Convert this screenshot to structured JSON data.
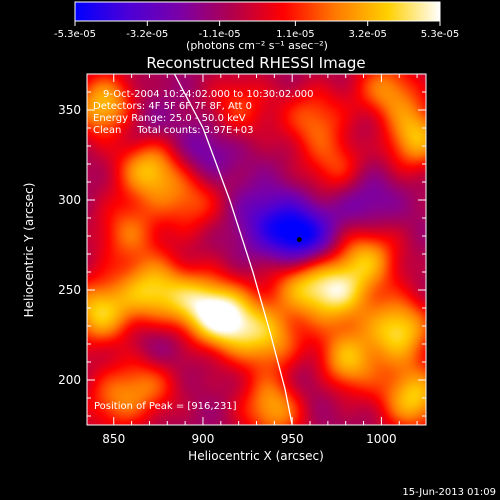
{
  "colorbar": {
    "ticks": [
      "-5.3e-05",
      "-3.2e-05",
      "-1.1e-05",
      "1.1e-05",
      "3.2e-05",
      "5.3e-05"
    ],
    "tick_values": [
      -5.3e-05,
      -3.2e-05,
      -1.1e-05,
      1.1e-05,
      3.2e-05,
      5.3e-05
    ],
    "range": [
      -5.3e-05,
      5.3e-05
    ],
    "unit_label": "(photons cm⁻² s⁻¹ asec⁻²)",
    "stops": [
      "#0000ff",
      "#4b00d8",
      "#7a00a8",
      "#b0004e",
      "#ff0000",
      "#ff7a00",
      "#ffd000",
      "#ffffff"
    ]
  },
  "chart_data": {
    "type": "heatmap",
    "title": "Reconstructed RHESSI Image",
    "xlabel": "Heliocentric X (arcsec)",
    "ylabel": "Heliocentric Y (arcsec)",
    "xlim": [
      835,
      1025
    ],
    "ylim": [
      175,
      370
    ],
    "xticks": [
      850,
      900,
      950,
      1000
    ],
    "yticks": [
      200,
      250,
      300,
      350
    ],
    "xticklabels": [
      "850",
      "900",
      "950",
      "1000"
    ],
    "yticklabels": [
      "200",
      "250",
      "300",
      "350"
    ],
    "info_lines": [
      "9-Oct-2004 10:24:02.000 to 10:30:02.000",
      "Detectors: 4F 5F 6F 7F 8F, Att 0",
      "Energy Range: 25.0 - 50.0 keV",
      "Clean     Total counts: 3.97E+03"
    ],
    "peak_label": "Position of Peak = [916,231]",
    "marker": {
      "x": 954,
      "y": 278
    },
    "limb": [
      [
        884,
        370
      ],
      [
        900,
        340
      ],
      [
        915,
        300
      ],
      [
        928,
        260
      ],
      [
        938,
        225
      ],
      [
        946,
        195
      ],
      [
        950,
        175
      ]
    ],
    "blobs": [
      {
        "x": 845,
        "y": 352,
        "v": 0.9
      },
      {
        "x": 870,
        "y": 318,
        "v": 0.9
      },
      {
        "x": 893,
        "y": 300,
        "v": 0.55
      },
      {
        "x": 858,
        "y": 282,
        "v": 0.55
      },
      {
        "x": 842,
        "y": 238,
        "v": 0.9
      },
      {
        "x": 872,
        "y": 250,
        "v": 0.85
      },
      {
        "x": 915,
        "y": 233,
        "v": 1.0
      },
      {
        "x": 898,
        "y": 242,
        "v": 0.8
      },
      {
        "x": 938,
        "y": 222,
        "v": 0.7
      },
      {
        "x": 955,
        "y": 255,
        "v": 0.75
      },
      {
        "x": 975,
        "y": 248,
        "v": 0.85
      },
      {
        "x": 992,
        "y": 268,
        "v": 0.75
      },
      {
        "x": 1010,
        "y": 228,
        "v": 0.95
      },
      {
        "x": 980,
        "y": 210,
        "v": 0.85
      },
      {
        "x": 940,
        "y": 185,
        "v": 0.8
      },
      {
        "x": 1018,
        "y": 190,
        "v": 0.9
      },
      {
        "x": 1003,
        "y": 360,
        "v": 0.7
      },
      {
        "x": 1018,
        "y": 335,
        "v": 0.9
      },
      {
        "x": 962,
        "y": 345,
        "v": 0.55
      },
      {
        "x": 975,
        "y": 318,
        "v": 0.5
      },
      {
        "x": 920,
        "y": 352,
        "v": 0.45
      },
      {
        "x": 870,
        "y": 200,
        "v": 0.6
      },
      {
        "x": 850,
        "y": 188,
        "v": 0.5
      },
      {
        "x": 955,
        "y": 278,
        "v": -0.9
      },
      {
        "x": 935,
        "y": 290,
        "v": -0.4
      },
      {
        "x": 990,
        "y": 300,
        "v": -0.35
      },
      {
        "x": 900,
        "y": 325,
        "v": -0.35
      },
      {
        "x": 875,
        "y": 215,
        "v": -0.3
      },
      {
        "x": 960,
        "y": 200,
        "v": -0.3
      },
      {
        "x": 1000,
        "y": 340,
        "v": -0.25
      },
      {
        "x": 865,
        "y": 340,
        "v": -0.3
      }
    ]
  },
  "footer": {
    "date": "15-Jun-2013 01:09"
  }
}
